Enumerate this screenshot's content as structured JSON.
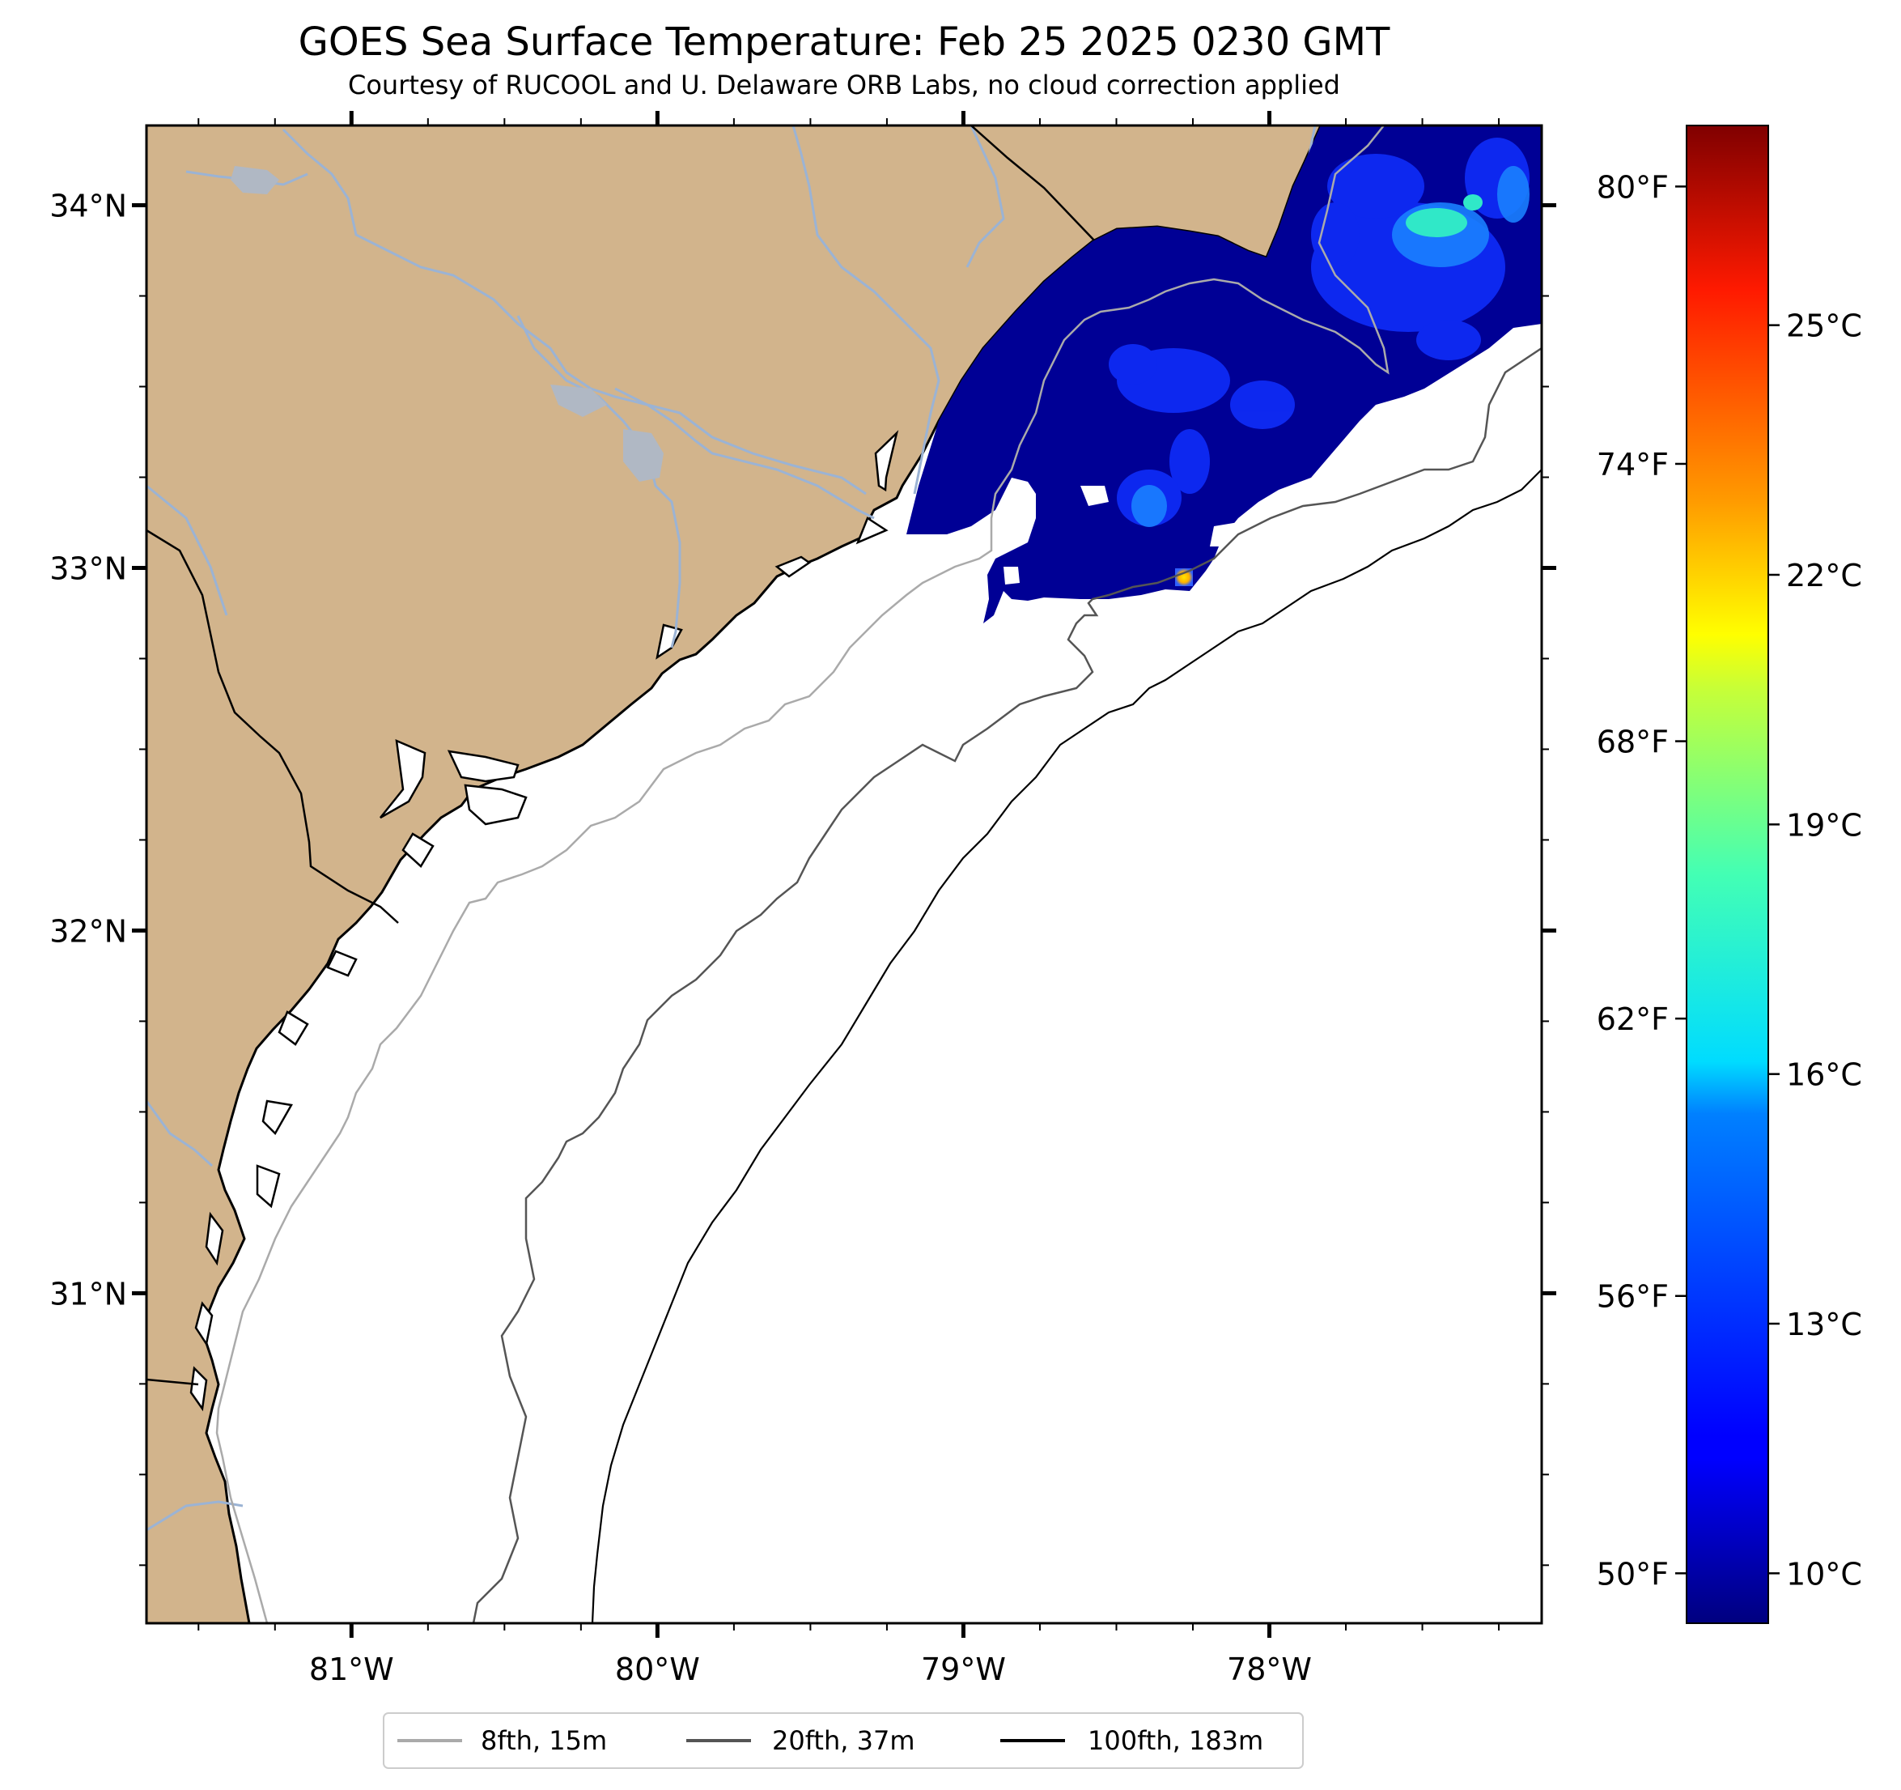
{
  "title": "GOES Sea Surface Temperature: Feb 25 2025 0230 GMT",
  "subtitle": "Courtesy of RUCOOL and U. Delaware ORB Labs, no cloud correction applied",
  "map": {
    "lon_range": [
      -81.67,
      -77.11
    ],
    "lat_range": [
      30.09,
      34.22
    ],
    "lat_ticks": [
      {
        "value": 34,
        "label": "34°N"
      },
      {
        "value": 33,
        "label": "33°N"
      },
      {
        "value": 32,
        "label": "32°N"
      },
      {
        "value": 31,
        "label": "31°N"
      }
    ],
    "lon_ticks": [
      {
        "value": -81,
        "label": "81°W"
      },
      {
        "value": -80,
        "label": "80°W"
      },
      {
        "value": -79,
        "label": "79°W"
      },
      {
        "value": -78,
        "label": "78°W"
      }
    ],
    "colors": {
      "land": "#d2b48c",
      "ocean": "#ffffff",
      "rivers": "#9bb3d4",
      "coast": "#000000"
    }
  },
  "colorbar": {
    "colormap": "jet",
    "range_c": [
      9.4,
      27.4
    ],
    "fahrenheit_ticks": [
      "80°F",
      "74°F",
      "68°F",
      "62°F",
      "56°F",
      "50°F"
    ],
    "celsius_ticks": [
      "25°C",
      "22°C",
      "19°C",
      "16°C",
      "13°C",
      "10°C"
    ]
  },
  "legend": {
    "items": [
      {
        "label": "8fth, 15m",
        "color": "#aaaaaa"
      },
      {
        "label": "20fth, 37m",
        "color": "#555555"
      },
      {
        "label": "100fth, 183m",
        "color": "#000000"
      }
    ]
  }
}
